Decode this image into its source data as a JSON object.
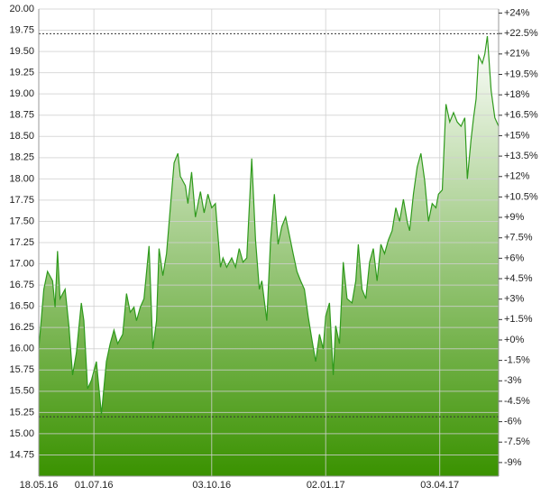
{
  "chart_data": {
    "type": "area",
    "x": [
      "2016-05-18",
      "2016-05-22",
      "2016-05-25",
      "2016-05-29",
      "2016-05-31",
      "2016-06-02",
      "2016-06-04",
      "2016-06-08",
      "2016-06-11",
      "2016-06-14",
      "2016-06-17",
      "2016-06-21",
      "2016-06-23",
      "2016-06-26",
      "2016-06-29",
      "2016-07-03",
      "2016-07-07",
      "2016-07-11",
      "2016-07-14",
      "2016-07-17",
      "2016-07-20",
      "2016-07-24",
      "2016-07-27",
      "2016-07-30",
      "2016-08-02",
      "2016-08-04",
      "2016-08-07",
      "2016-08-10",
      "2016-08-14",
      "2016-08-17",
      "2016-08-20",
      "2016-08-22",
      "2016-08-25",
      "2016-08-28",
      "2016-08-31",
      "2016-09-03",
      "2016-09-06",
      "2016-09-08",
      "2016-09-12",
      "2016-09-14",
      "2016-09-17",
      "2016-09-20",
      "2016-09-24",
      "2016-09-27",
      "2016-09-30",
      "2016-10-03",
      "2016-10-06",
      "2016-10-10",
      "2016-10-12",
      "2016-10-15",
      "2016-10-19",
      "2016-10-22",
      "2016-10-25",
      "2016-10-28",
      "2016-10-31",
      "2016-11-04",
      "2016-11-07",
      "2016-11-10",
      "2016-11-12",
      "2016-11-16",
      "2016-11-19",
      "2016-11-22",
      "2016-11-25",
      "2016-11-28",
      "2016-12-01",
      "2016-12-04",
      "2016-12-07",
      "2016-12-10",
      "2016-12-13",
      "2016-12-16",
      "2016-12-19",
      "2016-12-22",
      "2016-12-25",
      "2016-12-28",
      "2016-12-31",
      "2017-01-02",
      "2017-01-05",
      "2017-01-08",
      "2017-01-10",
      "2017-01-13",
      "2017-01-16",
      "2017-01-19",
      "2017-01-23",
      "2017-01-26",
      "2017-01-28",
      "2017-01-31",
      "2017-02-03",
      "2017-02-06",
      "2017-02-09",
      "2017-02-12",
      "2017-02-15",
      "2017-02-18",
      "2017-02-21",
      "2017-02-24",
      "2017-02-27",
      "2017-03-02",
      "2017-03-05",
      "2017-03-08",
      "2017-03-10",
      "2017-03-13",
      "2017-03-16",
      "2017-03-19",
      "2017-03-22",
      "2017-03-25",
      "2017-03-28",
      "2017-03-31",
      "2017-04-02",
      "2017-04-05",
      "2017-04-08",
      "2017-04-11",
      "2017-04-14",
      "2017-04-17",
      "2017-04-20",
      "2017-04-23",
      "2017-04-25",
      "2017-04-28",
      "2017-04-30",
      "2017-05-02",
      "2017-05-04",
      "2017-05-07",
      "2017-05-09",
      "2017-05-11",
      "2017-05-14",
      "2017-05-17",
      "2017-05-20"
    ],
    "series": [
      {
        "color": "#2f9a1c",
        "values": [
          16.0,
          16.7,
          16.91,
          16.8,
          16.49,
          17.15,
          16.59,
          16.7,
          16.27,
          15.69,
          15.95,
          16.54,
          16.33,
          15.53,
          15.63,
          15.85,
          15.23,
          15.85,
          16.06,
          16.22,
          16.06,
          16.17,
          16.65,
          16.43,
          16.49,
          16.33,
          16.49,
          16.59,
          17.21,
          16.0,
          16.33,
          17.18,
          16.86,
          17.12,
          17.66,
          18.19,
          18.3,
          18.03,
          17.92,
          17.71,
          18.08,
          17.55,
          17.85,
          17.6,
          17.82,
          17.66,
          17.71,
          16.96,
          17.07,
          16.96,
          17.07,
          16.96,
          17.18,
          17.02,
          17.07,
          18.24,
          17.28,
          16.7,
          16.8,
          16.33,
          17.28,
          17.82,
          17.23,
          17.44,
          17.55,
          17.34,
          17.12,
          16.91,
          16.8,
          16.7,
          16.38,
          16.11,
          15.85,
          16.17,
          16.0,
          16.38,
          16.54,
          15.69,
          16.27,
          16.06,
          17.02,
          16.59,
          16.54,
          16.8,
          17.23,
          16.7,
          16.59,
          17.02,
          17.18,
          16.8,
          17.23,
          17.12,
          17.28,
          17.39,
          17.66,
          17.5,
          17.76,
          17.5,
          17.39,
          17.82,
          18.14,
          18.3,
          17.98,
          17.5,
          17.71,
          17.66,
          17.82,
          17.87,
          18.88,
          18.67,
          18.78,
          18.67,
          18.62,
          18.72,
          18.0,
          18.46,
          18.72,
          18.94,
          19.45,
          19.36,
          19.47,
          19.68,
          19.04,
          18.72,
          18.62
        ]
      }
    ],
    "xlim": [
      "2016-05-18",
      "2017-05-20"
    ],
    "xticks": [
      {
        "value": "2016-05-18",
        "label": "18.05.16"
      },
      {
        "value": "2016-07-01",
        "label": "01.07.16"
      },
      {
        "value": "2016-10-03",
        "label": "03.10.16"
      },
      {
        "value": "2017-01-02",
        "label": "02.01.17"
      },
      {
        "value": "2017-04-03",
        "label": "03.04.17"
      }
    ],
    "ylim": [
      14.5,
      20.0
    ],
    "yticks": [
      {
        "value": 14.75,
        "label": "14.75"
      },
      {
        "value": 15,
        "label": "15.00"
      },
      {
        "value": 15.25,
        "label": "15.25"
      },
      {
        "value": 15.5,
        "label": "15.50"
      },
      {
        "value": 15.75,
        "label": "15.75"
      },
      {
        "value": 16,
        "label": "16.00"
      },
      {
        "value": 16.25,
        "label": "16.25"
      },
      {
        "value": 16.5,
        "label": "16.50"
      },
      {
        "value": 16.75,
        "label": "16.75"
      },
      {
        "value": 17,
        "label": "17.00"
      },
      {
        "value": 17.25,
        "label": "17.25"
      },
      {
        "value": 17.5,
        "label": "17.50"
      },
      {
        "value": 17.75,
        "label": "17.75"
      },
      {
        "value": 18,
        "label": "18.00"
      },
      {
        "value": 18.25,
        "label": "18.25"
      },
      {
        "value": 18.5,
        "label": "18.50"
      },
      {
        "value": 18.75,
        "label": "18.75"
      },
      {
        "value": 19,
        "label": "19.00"
      },
      {
        "value": 19.25,
        "label": "19.25"
      },
      {
        "value": 19.5,
        "label": "19.50"
      },
      {
        "value": 19.75,
        "label": "19.75"
      },
      {
        "value": 20,
        "label": "20.00"
      }
    ],
    "y2lim": [
      -10.0,
      24.3
    ],
    "y2ticks": [
      {
        "value": 24,
        "label": "+24%"
      },
      {
        "value": 22.5,
        "label": "+22.5%"
      },
      {
        "value": 21,
        "label": "+21%"
      },
      {
        "value": 19.5,
        "label": "+19.5%"
      },
      {
        "value": 18,
        "label": "+18%"
      },
      {
        "value": 16.5,
        "label": "+16.5%"
      },
      {
        "value": 15,
        "label": "+15%"
      },
      {
        "value": 13.5,
        "label": "+13.5%"
      },
      {
        "value": 12,
        "label": "+12%"
      },
      {
        "value": 10.5,
        "label": "+10.5%"
      },
      {
        "value": 9,
        "label": "+9%"
      },
      {
        "value": 7.5,
        "label": "+7.5%"
      },
      {
        "value": 6,
        "label": "+6%"
      },
      {
        "value": 4.5,
        "label": "+4.5%"
      },
      {
        "value": 3,
        "label": "+3%"
      },
      {
        "value": 1.5,
        "label": "+1.5%"
      },
      {
        "value": 0,
        "label": "+0%"
      },
      {
        "value": -1.5,
        "label": "-1.5%"
      },
      {
        "value": -3,
        "label": "-3%"
      },
      {
        "value": -4.5,
        "label": "-4.5%"
      },
      {
        "value": -6,
        "label": "-6%"
      },
      {
        "value": -7.5,
        "label": "-7.5%"
      },
      {
        "value": -9,
        "label": "-9%"
      }
    ],
    "reference_lines": [
      19.71,
      15.2
    ],
    "grid": true
  }
}
